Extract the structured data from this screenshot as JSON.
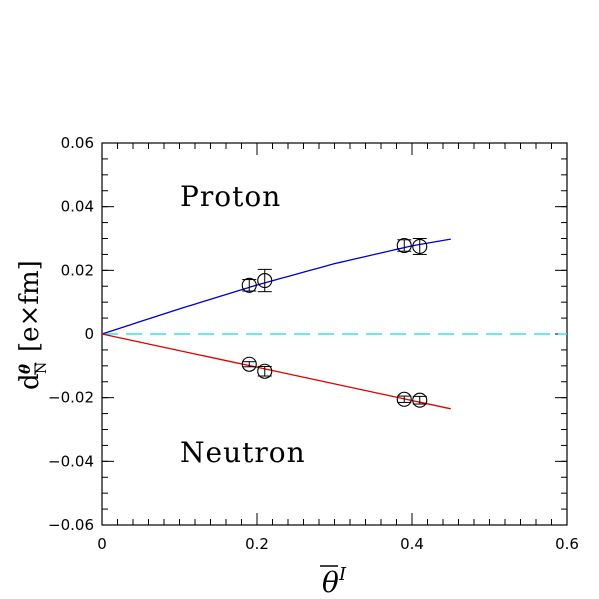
{
  "chart_data": {
    "type": "scatter",
    "xlabel": "θ̄ᴵ",
    "ylabel": "d^θ_N [e×fm]",
    "xlim": [
      0,
      0.6
    ],
    "ylim": [
      -0.06,
      0.06
    ],
    "x_ticks": [
      0,
      0.2,
      0.4,
      0.6
    ],
    "x_tick_labels": [
      "0",
      "0.2",
      "0.4",
      "0.6"
    ],
    "y_ticks": [
      -0.06,
      -0.04,
      -0.02,
      0,
      0.02,
      0.04,
      0.06
    ],
    "y_tick_labels": [
      "−0.06",
      "−0.04",
      "−0.02",
      "0",
      "0.02",
      "0.04",
      "0.06"
    ],
    "grid": false,
    "series": [
      {
        "name": "Proton",
        "color": "#0000cc",
        "points": [
          {
            "x": 0.19,
            "y": 0.0153,
            "err": 0.0018
          },
          {
            "x": 0.21,
            "y": 0.0168,
            "err": 0.0035
          },
          {
            "x": 0.39,
            "y": 0.0278,
            "err": 0.0018
          },
          {
            "x": 0.41,
            "y": 0.0275,
            "err": 0.0025
          }
        ],
        "fit": {
          "x": [
            0,
            0.1,
            0.2,
            0.3,
            0.4,
            0.45
          ],
          "y": [
            0,
            0.0079,
            0.0154,
            0.0221,
            0.0277,
            0.0298
          ]
        }
      },
      {
        "name": "Neutron",
        "color": "#e00000",
        "points": [
          {
            "x": 0.19,
            "y": -0.0095,
            "err": 0.0008
          },
          {
            "x": 0.21,
            "y": -0.0117,
            "err": 0.0015
          },
          {
            "x": 0.39,
            "y": -0.0205,
            "err": 0.001
          },
          {
            "x": 0.41,
            "y": -0.0208,
            "err": 0.0012
          }
        ],
        "fit": {
          "x": [
            0,
            0.45
          ],
          "y": [
            0,
            -0.0235
          ]
        }
      }
    ],
    "reference_line": {
      "y": 0,
      "color": "#33e5e5",
      "style": "dashed"
    },
    "annotations": [
      {
        "text": "Proton"
      },
      {
        "text": "Neutron"
      }
    ]
  }
}
